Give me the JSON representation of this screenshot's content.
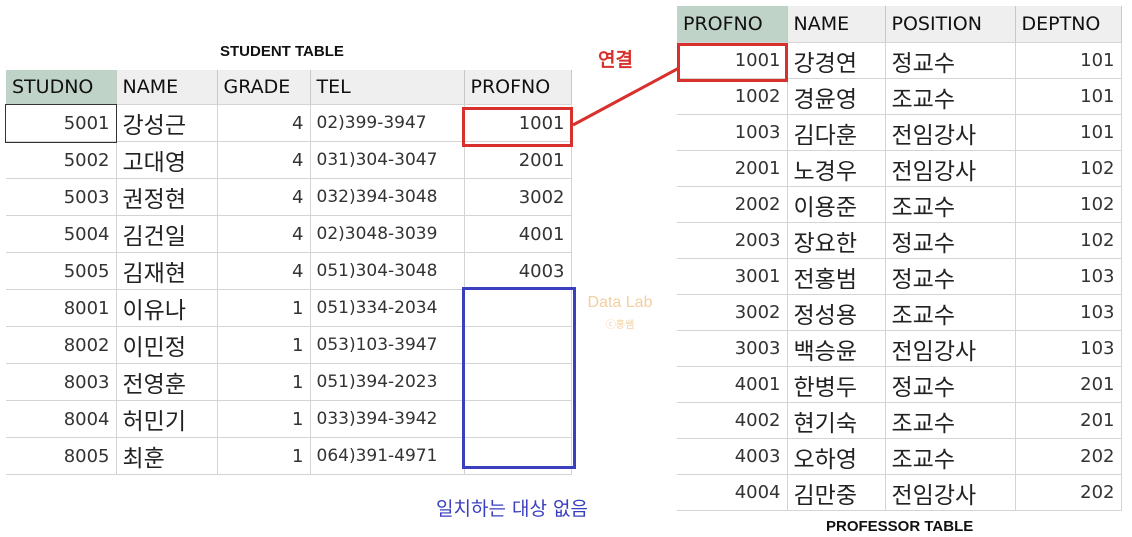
{
  "student_table": {
    "caption": "STUDENT TABLE",
    "columns": [
      "STUDNO",
      "NAME",
      "GRADE",
      "TEL",
      "PROFNO"
    ],
    "rows": [
      {
        "studno": "5001",
        "name": "강성근",
        "grade": "4",
        "tel": "02)399-3947",
        "profno": "1001"
      },
      {
        "studno": "5002",
        "name": "고대영",
        "grade": "4",
        "tel": "031)304-3047",
        "profno": "2001"
      },
      {
        "studno": "5003",
        "name": "권정현",
        "grade": "4",
        "tel": "032)394-3048",
        "profno": "3002"
      },
      {
        "studno": "5004",
        "name": "김건일",
        "grade": "4",
        "tel": "02)3048-3039",
        "profno": "4001"
      },
      {
        "studno": "5005",
        "name": "김재현",
        "grade": "4",
        "tel": "051)304-3048",
        "profno": "4003"
      },
      {
        "studno": "8001",
        "name": "이유나",
        "grade": "1",
        "tel": "051)334-2034",
        "profno": ""
      },
      {
        "studno": "8002",
        "name": "이민정",
        "grade": "1",
        "tel": "053)103-3947",
        "profno": ""
      },
      {
        "studno": "8003",
        "name": "전영훈",
        "grade": "1",
        "tel": "051)394-2023",
        "profno": ""
      },
      {
        "studno": "8004",
        "name": "허민기",
        "grade": "1",
        "tel": "033)394-3942",
        "profno": ""
      },
      {
        "studno": "8005",
        "name": "최훈",
        "grade": "1",
        "tel": "064)391-4971",
        "profno": ""
      }
    ]
  },
  "professor_table": {
    "caption": "PROFESSOR TABLE",
    "columns": [
      "PROFNO",
      "NAME",
      "POSITION",
      "DEPTNO"
    ],
    "rows": [
      {
        "profno": "1001",
        "name": "강경연",
        "position": "정교수",
        "deptno": "101"
      },
      {
        "profno": "1002",
        "name": "경윤영",
        "position": "조교수",
        "deptno": "101"
      },
      {
        "profno": "1003",
        "name": "김다훈",
        "position": "전임강사",
        "deptno": "101"
      },
      {
        "profno": "2001",
        "name": "노경우",
        "position": "전임강사",
        "deptno": "102"
      },
      {
        "profno": "2002",
        "name": "이용준",
        "position": "조교수",
        "deptno": "102"
      },
      {
        "profno": "2003",
        "name": "장요한",
        "position": "정교수",
        "deptno": "102"
      },
      {
        "profno": "3001",
        "name": "전홍범",
        "position": "정교수",
        "deptno": "103"
      },
      {
        "profno": "3002",
        "name": "정성용",
        "position": "조교수",
        "deptno": "103"
      },
      {
        "profno": "3003",
        "name": "백승윤",
        "position": "전임강사",
        "deptno": "103"
      },
      {
        "profno": "4001",
        "name": "한병두",
        "position": "정교수",
        "deptno": "201"
      },
      {
        "profno": "4002",
        "name": "현기숙",
        "position": "조교수",
        "deptno": "201"
      },
      {
        "profno": "4003",
        "name": "오하영",
        "position": "조교수",
        "deptno": "202"
      },
      {
        "profno": "4004",
        "name": "김만중",
        "position": "전임강사",
        "deptno": "202"
      }
    ]
  },
  "annotations": {
    "link_label": "연결",
    "no_match_label": "일치하는 대상 없음",
    "link_color": "#d8302c",
    "no_match_color": "#3a3fbf"
  },
  "watermark": {
    "line1": "Data Lab",
    "line2": "ⓒ홍쌤"
  }
}
